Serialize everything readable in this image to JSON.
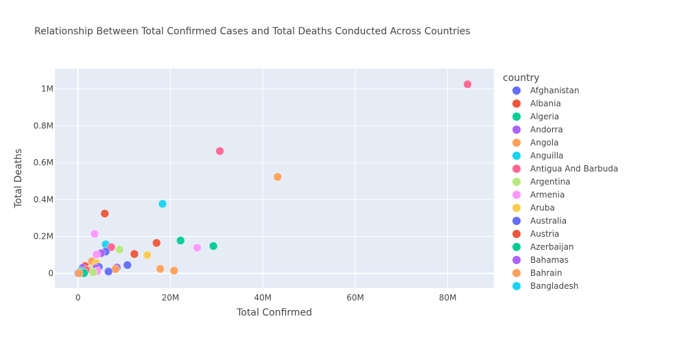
{
  "chart_data": {
    "type": "scatter",
    "title": "Relationship Between Total Confirmed Cases and Total Deaths Conducted Across Countries",
    "xlabel": "Total Confirmed",
    "ylabel": "Total Deaths",
    "xlim": [
      -5000000,
      90000000
    ],
    "ylim": [
      -80000,
      1110000
    ],
    "x_ticks": [
      0,
      20000000,
      40000000,
      60000000,
      80000000
    ],
    "x_tick_labels": [
      "0",
      "20M",
      "40M",
      "60M",
      "80M"
    ],
    "y_ticks": [
      0,
      200000,
      400000,
      600000,
      800000,
      1000000
    ],
    "y_tick_labels": [
      "0",
      "0.2M",
      "0.4M",
      "0.6M",
      "0.8M",
      "1M"
    ],
    "grid": true,
    "legend_title": "country",
    "legend_position": "right",
    "palette": [
      "#636efa",
      "#EF553B",
      "#00cc96",
      "#ab63fa",
      "#FFA15A",
      "#19d3f3",
      "#FF6692",
      "#B6E880",
      "#FF97FF",
      "#FECB52"
    ],
    "legend": [
      {
        "name": "Afghanistan",
        "color": "#636efa"
      },
      {
        "name": "Albania",
        "color": "#EF553B"
      },
      {
        "name": "Algeria",
        "color": "#00cc96"
      },
      {
        "name": "Andorra",
        "color": "#ab63fa"
      },
      {
        "name": "Angola",
        "color": "#FFA15A"
      },
      {
        "name": "Anguilla",
        "color": "#19d3f3"
      },
      {
        "name": "Antigua And Barbuda",
        "color": "#FF6692"
      },
      {
        "name": "Argentina",
        "color": "#B6E880"
      },
      {
        "name": "Armenia",
        "color": "#FF97FF"
      },
      {
        "name": "Aruba",
        "color": "#FECB52"
      },
      {
        "name": "Australia",
        "color": "#636efa"
      },
      {
        "name": "Austria",
        "color": "#EF553B"
      },
      {
        "name": "Azerbaijan",
        "color": "#00cc96"
      },
      {
        "name": "Bahamas",
        "color": "#ab63fa"
      },
      {
        "name": "Bahrain",
        "color": "#FFA15A"
      },
      {
        "name": "Bangladesh",
        "color": "#19d3f3"
      }
    ],
    "points": [
      {
        "x": 84300000,
        "y": 1025000,
        "color": "#FF6692"
      },
      {
        "x": 30700000,
        "y": 663000,
        "color": "#FF6692"
      },
      {
        "x": 43200000,
        "y": 523000,
        "color": "#FFA15A"
      },
      {
        "x": 18300000,
        "y": 377000,
        "color": "#19d3f3"
      },
      {
        "x": 5800000,
        "y": 324000,
        "color": "#EF553B"
      },
      {
        "x": 3600000,
        "y": 214000,
        "color": "#FF97FF"
      },
      {
        "x": 22200000,
        "y": 178000,
        "color": "#00cc96"
      },
      {
        "x": 17000000,
        "y": 165000,
        "color": "#EF553B"
      },
      {
        "x": 6000000,
        "y": 157000,
        "color": "#19d3f3"
      },
      {
        "x": 29300000,
        "y": 148000,
        "color": "#00cc96"
      },
      {
        "x": 7200000,
        "y": 142000,
        "color": "#FF6692"
      },
      {
        "x": 25800000,
        "y": 139000,
        "color": "#FF97FF"
      },
      {
        "x": 9000000,
        "y": 129000,
        "color": "#B6E880"
      },
      {
        "x": 6000000,
        "y": 118000,
        "color": "#636efa"
      },
      {
        "x": 5000000,
        "y": 109000,
        "color": "#ab63fa"
      },
      {
        "x": 12200000,
        "y": 105000,
        "color": "#EF553B"
      },
      {
        "x": 4000000,
        "y": 102000,
        "color": "#FF97FF"
      },
      {
        "x": 15000000,
        "y": 99000,
        "color": "#FECB52"
      },
      {
        "x": 3000000,
        "y": 65000,
        "color": "#FFA15A"
      },
      {
        "x": 4000000,
        "y": 55000,
        "color": "#FECB52"
      },
      {
        "x": 10700000,
        "y": 45000,
        "color": "#636efa"
      },
      {
        "x": 1500000,
        "y": 40000,
        "color": "#EF553B"
      },
      {
        "x": 4500000,
        "y": 35000,
        "color": "#636efa"
      },
      {
        "x": 8400000,
        "y": 32000,
        "color": "#ab63fa"
      },
      {
        "x": 1000000,
        "y": 30000,
        "color": "#ab63fa"
      },
      {
        "x": 3900000,
        "y": 28000,
        "color": "#ab63fa"
      },
      {
        "x": 17800000,
        "y": 24000,
        "color": "#FFA15A"
      },
      {
        "x": 8100000,
        "y": 23000,
        "color": "#FFA15A"
      },
      {
        "x": 2500000,
        "y": 20000,
        "color": "#B6E880"
      },
      {
        "x": 1800000,
        "y": 18000,
        "color": "#FF6692"
      },
      {
        "x": 20800000,
        "y": 15000,
        "color": "#FFA15A"
      },
      {
        "x": 500000,
        "y": 14000,
        "color": "#00cc96"
      },
      {
        "x": 4200000,
        "y": 12000,
        "color": "#FF97FF"
      },
      {
        "x": 6600000,
        "y": 10000,
        "color": "#636efa"
      },
      {
        "x": 300000,
        "y": 8000,
        "color": "#19d3f3"
      },
      {
        "x": 1200000,
        "y": 6000,
        "color": "#00cc96"
      },
      {
        "x": 3300000,
        "y": 6000,
        "color": "#B6E880"
      },
      {
        "x": 100000,
        "y": 3000,
        "color": "#636efa"
      },
      {
        "x": 600000,
        "y": 2000,
        "color": "#ab63fa"
      },
      {
        "x": 1300000,
        "y": 1500,
        "color": "#00cc96"
      },
      {
        "x": 50000,
        "y": 500,
        "color": "#636efa"
      },
      {
        "x": 200000,
        "y": 1000,
        "color": "#FFA15A"
      }
    ]
  }
}
